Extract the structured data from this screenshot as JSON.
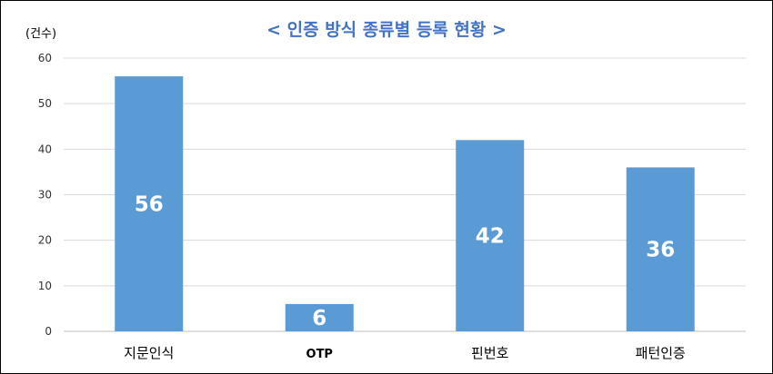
{
  "chart_data": {
    "type": "bar",
    "title": "< 인증 방식 종류별 등록 현황 >",
    "ylabel": "(건수)",
    "categories": [
      "지문인식",
      "OTP",
      "핀번호",
      "패턴인증"
    ],
    "values": [
      56,
      6,
      42,
      36
    ],
    "ylim": [
      0,
      60
    ],
    "yticks": [
      0,
      10,
      20,
      30,
      40,
      50,
      60
    ],
    "grid": true,
    "legend": "none",
    "bar_color": "#5b9bd5",
    "label_color": "#ffffff"
  }
}
